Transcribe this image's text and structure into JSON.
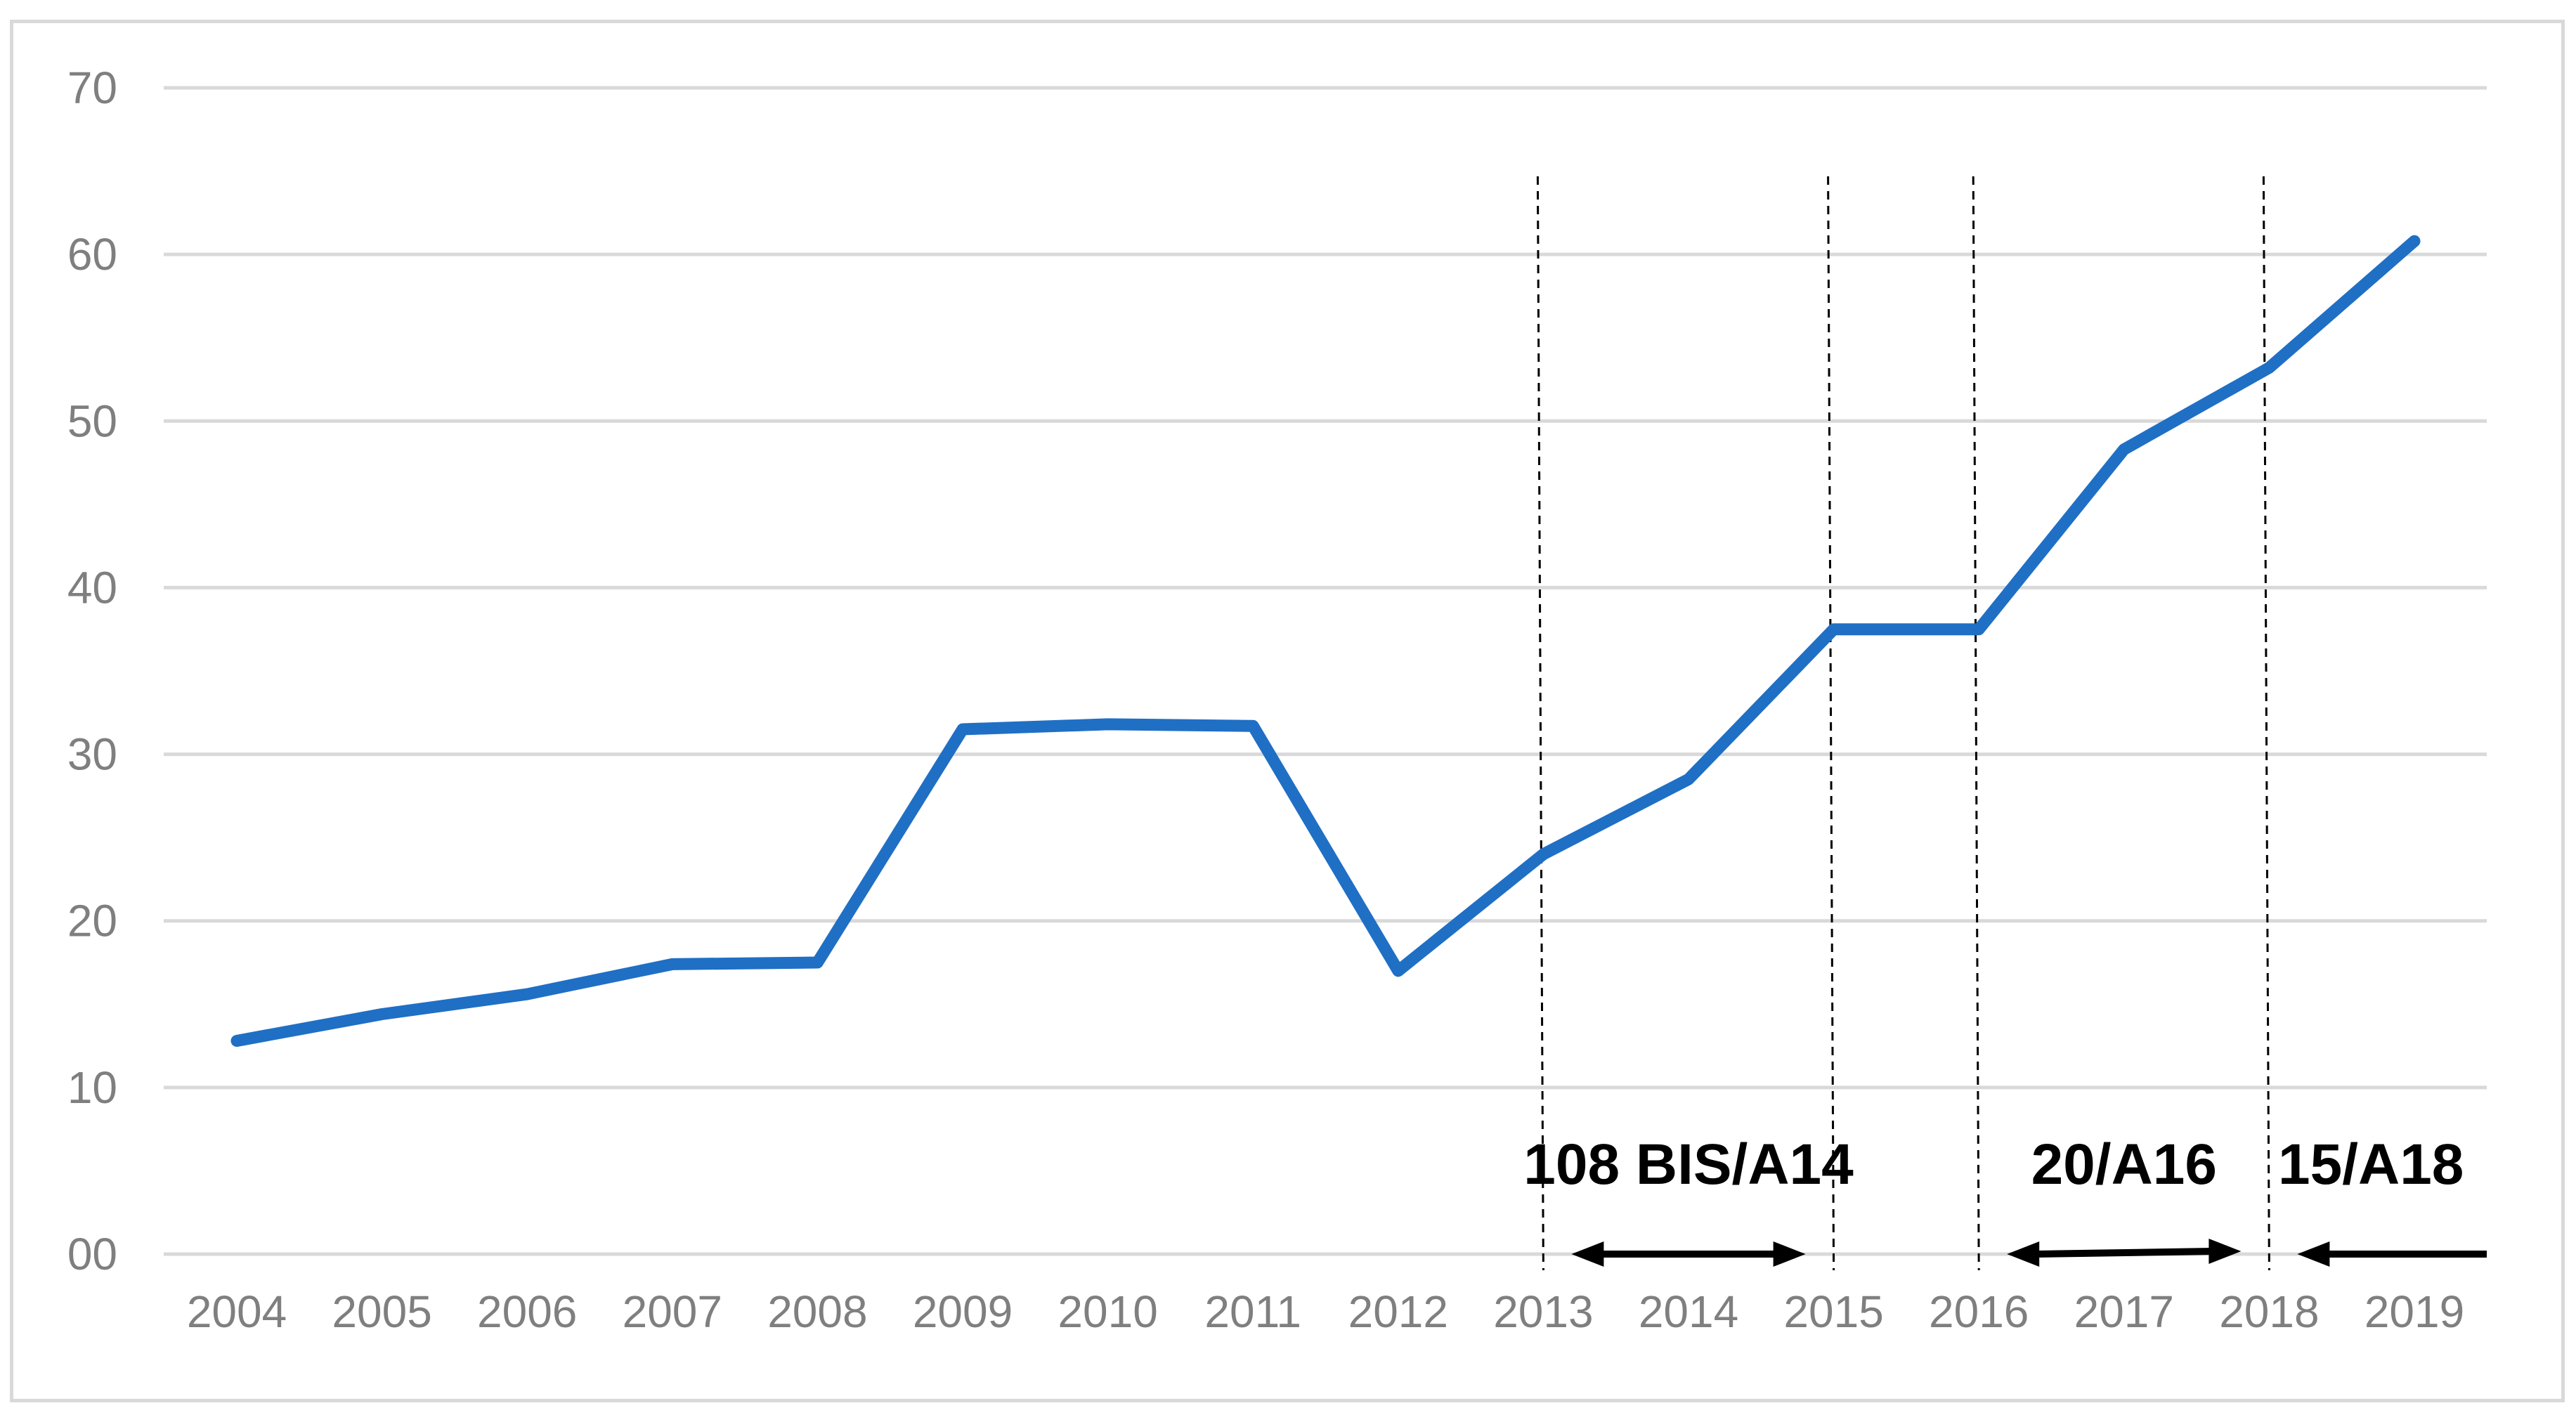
{
  "chart_data": {
    "type": "line",
    "title": "",
    "xlabel": "",
    "ylabel": "",
    "x": [
      "2004",
      "2005",
      "2006",
      "2007",
      "2008",
      "2009",
      "2010",
      "2011",
      "2012",
      "2013",
      "2014",
      "2015",
      "2016",
      "2017",
      "2018",
      "2019"
    ],
    "series": [
      {
        "values": [
          12.8,
          14.4,
          15.6,
          17.4,
          17.5,
          31.5,
          31.8,
          31.7,
          17.0,
          24.0,
          28.5,
          37.5,
          37.5,
          48.3,
          53.2,
          60.8
        ],
        "color": "#1f6fc5"
      }
    ],
    "ylim": [
      0,
      70
    ],
    "yticks": [
      0,
      10,
      20,
      30,
      40,
      50,
      60,
      70
    ],
    "ytick_labels": [
      "00",
      "10",
      "20",
      "30",
      "40",
      "50",
      "60",
      "70"
    ],
    "grid": true,
    "legend": "none",
    "vertical_markers": [
      {
        "x": "2013",
        "style": "dashed"
      },
      {
        "x": "2015",
        "style": "dashed"
      },
      {
        "x": "2016",
        "style": "dashed"
      },
      {
        "x": "2018",
        "style": "dashed"
      }
    ],
    "annotations": [
      {
        "label": "108 BIS/A14",
        "from": "2013",
        "to": "2015",
        "arrow": "both"
      },
      {
        "label": "20/A16",
        "from": "2016",
        "to": "2018",
        "arrow": "both"
      },
      {
        "label": "15/A18",
        "from": "2018",
        "to": "2019",
        "arrow": "left"
      }
    ],
    "colors": {
      "line": "#1f6fc5",
      "grid": "#d9d9d9",
      "tick_text": "#7f7f7f",
      "annotation": "#000000",
      "frame": "#d9d9d9"
    }
  }
}
